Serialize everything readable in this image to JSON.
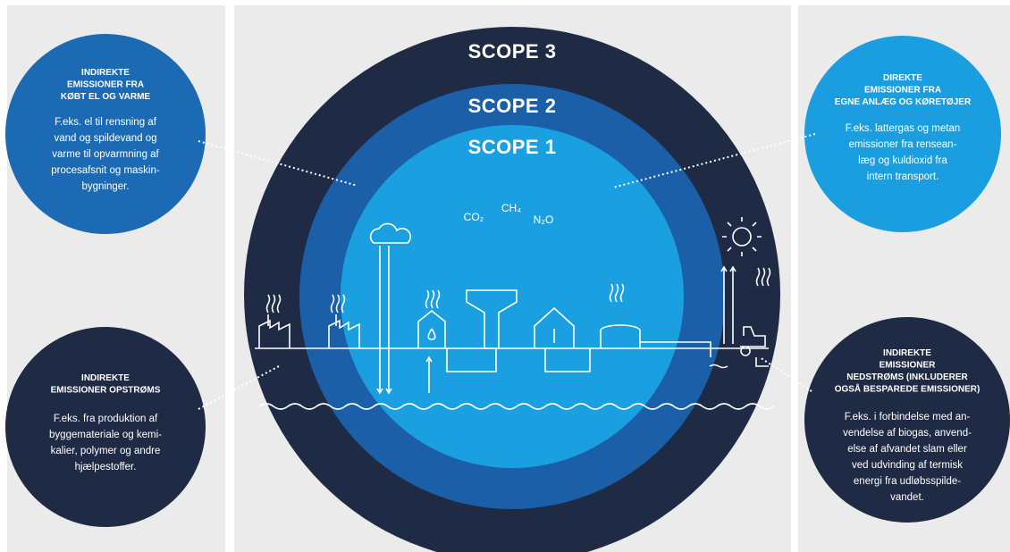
{
  "scopes": [
    "SCOPE 3",
    "SCOPE 2",
    "SCOPE 1"
  ],
  "gases": [
    "CO₂",
    "CH₄",
    "N₂O"
  ],
  "callouts": [
    {
      "title": [
        "INDIREKTE",
        "EMISSIONER FRA",
        "KØBT EL OG VARME"
      ],
      "body": [
        "F.eks. el til rensning af",
        "vand og spildevand og",
        "varme til opvarmning af",
        "procesafsnit og maskin-",
        "bygninger."
      ]
    },
    {
      "title": [
        "INDIREKTE",
        "EMISSIONER OPSTRØMS"
      ],
      "body": [
        "F.eks. fra produktion af",
        "byggemateriale og kemi-",
        "kalier, polymer og andre",
        "hjælpestoffer."
      ]
    },
    {
      "title": [
        "DIREKTE",
        "EMISSIONER FRA",
        "EGNE ANLÆG OG KØRETØJER"
      ],
      "body": [
        "F.eks. lattergas og metan",
        "emissioner fra rensean-",
        "læg og kuldioxid fra",
        "intern transport."
      ]
    },
    {
      "title": [
        "INDIREKTE",
        "EMISSIONER",
        "NEDSTRØMS (INKLUDERER",
        "OGSÅ BESPAREDE EMISSIONER)"
      ],
      "body": [
        "F.eks. i forbindelse med an-",
        "vendelse af biogas, anvend-",
        "else af afvandet slam eller",
        "ved udvinding af termisk",
        "energi fra udløbsspilde-",
        "vandet."
      ]
    }
  ]
}
